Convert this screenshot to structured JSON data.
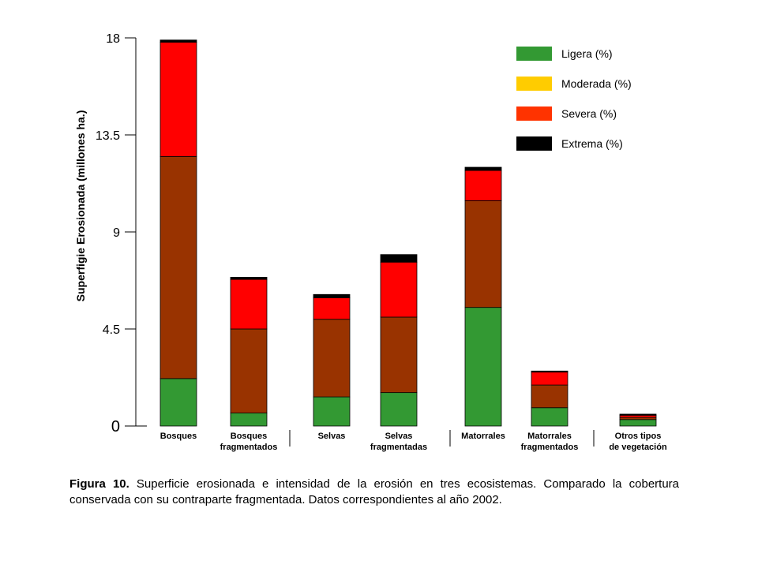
{
  "chart_data": {
    "type": "bar",
    "stacked": true,
    "ylabel": "Superfigie  Erosionada (millones ha.)",
    "ylim": [
      0,
      18
    ],
    "yticks": [
      "0",
      "4.5",
      "9",
      "13.5",
      "18"
    ],
    "categories": [
      [
        "Bosques"
      ],
      [
        "Bosques",
        "fragmentados"
      ],
      [
        "Selvas"
      ],
      [
        "Selvas",
        "fragmentadas"
      ],
      [
        "Matorrales"
      ],
      [
        "Matorrales",
        "fragmentados"
      ],
      [
        "Otros tipos",
        "de vegetación"
      ]
    ],
    "series": [
      {
        "name": "Ligera (%)",
        "color": "#339933",
        "values": [
          2.2,
          0.6,
          1.35,
          1.55,
          5.5,
          0.85,
          0.3
        ]
      },
      {
        "name": "Moderada (%)",
        "color": "#993300",
        "values": [
          10.3,
          3.9,
          3.6,
          3.5,
          4.95,
          1.05,
          0.1
        ]
      },
      {
        "name": "Severa (%)",
        "color": "#ff0000",
        "values": [
          5.3,
          2.3,
          1.0,
          2.55,
          1.4,
          0.6,
          0.1
        ]
      },
      {
        "name": "Extrema (%)",
        "color": "#000000",
        "values": [
          0.1,
          0.1,
          0.15,
          0.35,
          0.15,
          0.05,
          0.05
        ]
      }
    ],
    "legend": {
      "position": "top-right",
      "items": [
        {
          "label": "Ligera (%)",
          "color": "#339933"
        },
        {
          "label": "Moderada (%)",
          "color": "#ffcc00"
        },
        {
          "label": "Severa (%)",
          "color": "#ff3300"
        },
        {
          "label": "Extrema (%)",
          "color": "#000000"
        }
      ]
    }
  },
  "caption": {
    "figure_label": "Figura 10.",
    "text": " Superficie erosionada e intensidad de la erosión en tres ecosistemas. Comparado la cobertura conservada con su contraparte fragmentada. Datos correspondientes al año 2002."
  }
}
